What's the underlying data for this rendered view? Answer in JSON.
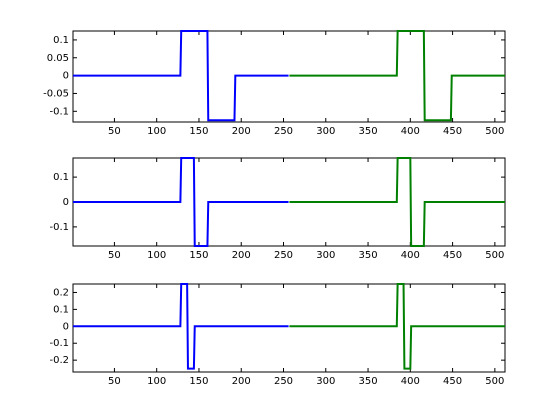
{
  "chart_data": [
    {
      "type": "line",
      "series": [
        {
          "color": "#0000ff",
          "x": [
            1,
            128,
            129,
            160,
            161,
            192,
            193,
            256
          ],
          "values": [
            0,
            0,
            0.125,
            0.125,
            -0.125,
            -0.125,
            0,
            0
          ]
        },
        {
          "color": "#008000",
          "x": [
            257,
            384,
            385,
            416,
            417,
            448,
            449,
            512
          ],
          "values": [
            0,
            0,
            0.125,
            0.125,
            -0.125,
            -0.125,
            0,
            0
          ]
        }
      ],
      "xlim": [
        1,
        512
      ],
      "xticks": [
        50,
        100,
        150,
        200,
        250,
        300,
        350,
        400,
        450,
        500
      ],
      "ylim": [
        -0.13,
        0.125
      ],
      "yticks": [
        0.1,
        0.05,
        0,
        -0.05,
        -0.1
      ],
      "grid": false
    },
    {
      "type": "line",
      "series": [
        {
          "color": "#0000ff",
          "x": [
            1,
            128,
            129,
            144,
            145,
            160,
            161,
            256
          ],
          "values": [
            0,
            0,
            0.1768,
            0.1768,
            -0.1768,
            -0.1768,
            0,
            0
          ]
        },
        {
          "color": "#008000",
          "x": [
            257,
            384,
            385,
            400,
            401,
            416,
            417,
            512
          ],
          "values": [
            0,
            0,
            0.1768,
            0.1768,
            -0.1768,
            -0.1768,
            0,
            0
          ]
        }
      ],
      "xlim": [
        1,
        512
      ],
      "xticks": [
        50,
        100,
        150,
        200,
        250,
        300,
        350,
        400,
        450,
        500
      ],
      "ylim": [
        -0.1768,
        0.1768
      ],
      "yticks": [
        0.1,
        0,
        -0.1
      ],
      "grid": false
    },
    {
      "type": "line",
      "series": [
        {
          "color": "#0000ff",
          "x": [
            1,
            128,
            129,
            136,
            137,
            144,
            145,
            256
          ],
          "values": [
            0,
            0,
            0.25,
            0.25,
            -0.25,
            -0.25,
            0,
            0
          ]
        },
        {
          "color": "#008000",
          "x": [
            257,
            384,
            385,
            392,
            393,
            400,
            401,
            512
          ],
          "values": [
            0,
            0,
            0.25,
            0.25,
            -0.25,
            -0.25,
            0,
            0
          ]
        }
      ],
      "xlim": [
        1,
        512
      ],
      "xticks": [
        50,
        100,
        150,
        200,
        250,
        300,
        350,
        400,
        450,
        500
      ],
      "ylim": [
        -0.27,
        0.25
      ],
      "yticks": [
        0.2,
        0.1,
        0,
        -0.1,
        -0.2
      ],
      "grid": false
    }
  ]
}
